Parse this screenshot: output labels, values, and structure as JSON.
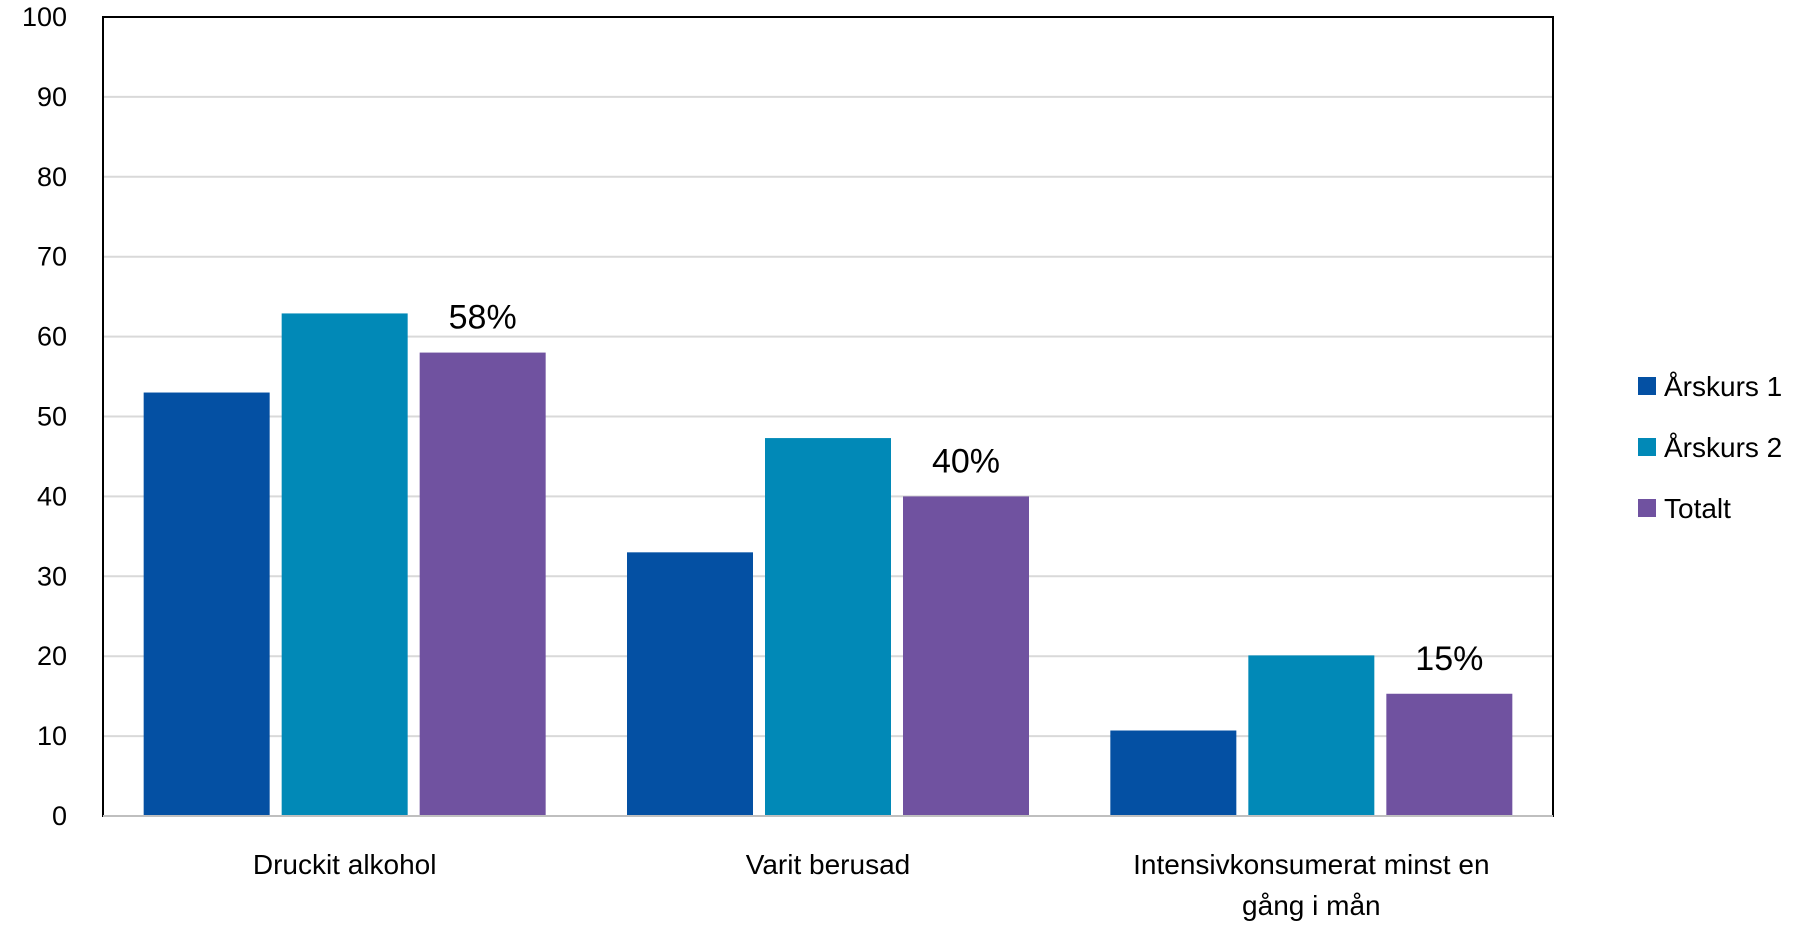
{
  "chart_data": {
    "type": "bar",
    "categories": [
      [
        "Druckit alkohol"
      ],
      [
        "Varit berusad"
      ],
      [
        "Intensivkonsumerat minst en",
        "gång i mån"
      ]
    ],
    "series": [
      {
        "name": "Årskurs 1",
        "color": "#0450A3",
        "values": [
          53,
          33,
          10.7
        ]
      },
      {
        "name": "Årskurs 2",
        "color": "#0189B7",
        "values": [
          62.9,
          47.3,
          20.1
        ]
      },
      {
        "name": "Totalt",
        "color": "#7052A0",
        "values": [
          58,
          40,
          15.3
        ]
      }
    ],
    "data_labels": [
      {
        "series": "Totalt",
        "category_index": 0,
        "text": "58%"
      },
      {
        "series": "Totalt",
        "category_index": 1,
        "text": "40%"
      },
      {
        "series": "Totalt",
        "category_index": 2,
        "text": "15%"
      }
    ],
    "ylim": [
      0,
      100
    ],
    "yticks": [
      "0",
      "10",
      "20",
      "30",
      "40",
      "50",
      "60",
      "70",
      "80",
      "90",
      "100"
    ],
    "grid": true,
    "legend_position": "right"
  }
}
